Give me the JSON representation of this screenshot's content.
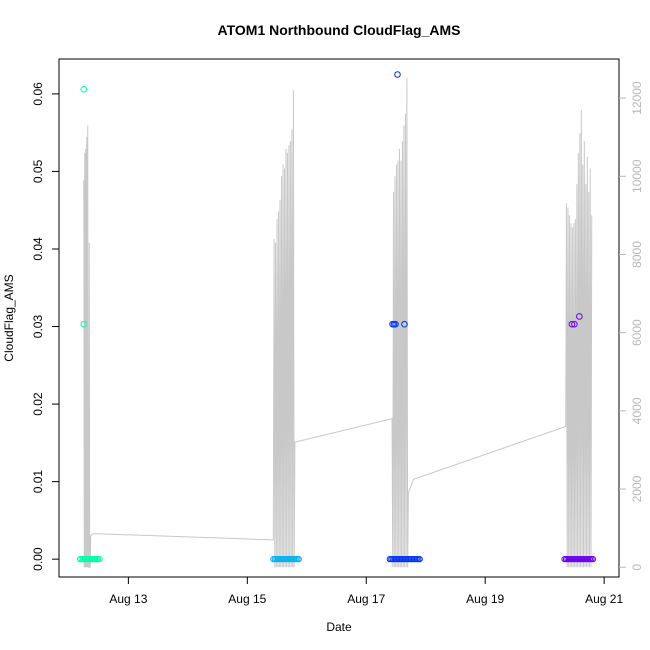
{
  "chart_data": {
    "type": "scatter",
    "title": "ATOM1 Northbound CloudFlag_AMS",
    "xlabel": "Date",
    "ylabel": "CloudFlag_AMS",
    "xlim": [
      "2023-08-11T20:00",
      "2023-08-21T06:00"
    ],
    "ylim": [
      -0.0023,
      0.0645
    ],
    "y2lim": [
      -250,
      13000
    ],
    "x_ticks": [
      {
        "value": "2023-08-13T00:00",
        "label": "Aug 13"
      },
      {
        "value": "2023-08-15T00:00",
        "label": "Aug 15"
      },
      {
        "value": "2023-08-17T00:00",
        "label": "Aug 17"
      },
      {
        "value": "2023-08-19T00:00",
        "label": "Aug 19"
      },
      {
        "value": "2023-08-21T00:00",
        "label": "Aug 21"
      }
    ],
    "y_ticks": [
      {
        "value": 0.0,
        "label": "0.00"
      },
      {
        "value": 0.01,
        "label": "0.01"
      },
      {
        "value": 0.02,
        "label": "0.02"
      },
      {
        "value": 0.03,
        "label": "0.03"
      },
      {
        "value": 0.04,
        "label": "0.04"
      },
      {
        "value": 0.05,
        "label": "0.05"
      },
      {
        "value": 0.06,
        "label": "0.06"
      }
    ],
    "y2_ticks": [
      {
        "value": 0,
        "label": "0"
      },
      {
        "value": 2000,
        "label": "2000"
      },
      {
        "value": 4000,
        "label": "4000"
      },
      {
        "value": 6000,
        "label": "6000"
      },
      {
        "value": 8000,
        "label": "8000"
      },
      {
        "value": 10000,
        "label": "10000"
      },
      {
        "value": 12000,
        "label": "12000"
      }
    ],
    "grid": false,
    "series_colors": {
      "points_1": "#00ffaa",
      "points_2": "#00b3ee",
      "points_3": "#0033ee",
      "points_4": "#6a00ee",
      "secondary_line": "#c8c8c8"
    },
    "points": [
      {
        "x": "2023-08-12T06:00",
        "y": 0.0606
      },
      {
        "x": "2023-08-12T06:00",
        "y": 0.0303
      },
      {
        "x": "2023-08-17T12:36",
        "y": 0.0625
      },
      {
        "x": "2023-08-17T10:36",
        "y": 0.0303
      },
      {
        "x": "2023-08-17T11:12",
        "y": 0.0303
      },
      {
        "x": "2023-08-17T11:48",
        "y": 0.0303
      },
      {
        "x": "2023-08-17T15:24",
        "y": 0.0303
      },
      {
        "x": "2023-08-20T11:00",
        "y": 0.0303
      },
      {
        "x": "2023-08-20T12:00",
        "y": 0.0303
      },
      {
        "x": "2023-08-20T14:00",
        "y": 0.0313
      }
    ],
    "zero_bands": [
      {
        "from": "2023-08-12T04:30",
        "to": "2023-08-12T12:30",
        "y": 0
      },
      {
        "from": "2023-08-15T10:30",
        "to": "2023-08-15T21:00",
        "y": 0
      },
      {
        "from": "2023-08-17T09:30",
        "to": "2023-08-17T22:00",
        "y": 0
      },
      {
        "from": "2023-08-20T08:00",
        "to": "2023-08-20T20:00",
        "y": 0
      }
    ],
    "secondary_series": {
      "axis": "right",
      "x": [
        "2023-08-12T06:00",
        "2023-08-12T06:12",
        "2023-08-12T06:24",
        "2023-08-12T06:36",
        "2023-08-12T06:48",
        "2023-08-12T07:00",
        "2023-08-12T07:12",
        "2023-08-12T07:24",
        "2023-08-12T07:36",
        "2023-08-12T07:48",
        "2023-08-12T08:00",
        "2023-08-12T08:12",
        "2023-08-12T08:24",
        "2023-08-12T08:36",
        "2023-08-12T08:48",
        "2023-08-12T09:00",
        "2023-08-12T09:12",
        "2023-08-12T09:24",
        "2023-08-12T09:36",
        "2023-08-12T09:48",
        "2023-08-15T10:30",
        "2023-08-15T10:48",
        "2023-08-15T11:06",
        "2023-08-15T11:24",
        "2023-08-15T11:42",
        "2023-08-15T12:00",
        "2023-08-15T12:18",
        "2023-08-15T12:36",
        "2023-08-15T12:54",
        "2023-08-15T13:12",
        "2023-08-15T13:30",
        "2023-08-15T13:48",
        "2023-08-15T14:06",
        "2023-08-15T14:24",
        "2023-08-15T14:42",
        "2023-08-15T15:00",
        "2023-08-15T15:18",
        "2023-08-15T15:36",
        "2023-08-15T15:54",
        "2023-08-15T16:12",
        "2023-08-15T16:30",
        "2023-08-15T16:48",
        "2023-08-15T17:06",
        "2023-08-15T17:24",
        "2023-08-15T17:42",
        "2023-08-15T18:00",
        "2023-08-15T18:18",
        "2023-08-15T18:36",
        "2023-08-15T18:54",
        "2023-08-15T19:12",
        "2023-08-17T10:24",
        "2023-08-17T10:42",
        "2023-08-17T11:00",
        "2023-08-17T11:18",
        "2023-08-17T11:36",
        "2023-08-17T11:54",
        "2023-08-17T12:12",
        "2023-08-17T12:30",
        "2023-08-17T12:48",
        "2023-08-17T13:06",
        "2023-08-17T13:24",
        "2023-08-17T13:42",
        "2023-08-17T14:00",
        "2023-08-17T14:18",
        "2023-08-17T14:36",
        "2023-08-17T14:54",
        "2023-08-17T15:12",
        "2023-08-17T15:30",
        "2023-08-17T15:48",
        "2023-08-17T16:06",
        "2023-08-17T16:24",
        "2023-08-17T16:42",
        "2023-08-17T17:00",
        "2023-08-17T17:18",
        "2023-08-17T17:36",
        "2023-08-17T17:54",
        "2023-08-17T18:12",
        "2023-08-17T18:30",
        "2023-08-17T18:48",
        "2023-08-17T19:06",
        "2023-08-20T08:30",
        "2023-08-20T08:48",
        "2023-08-20T09:06",
        "2023-08-20T09:24",
        "2023-08-20T09:42",
        "2023-08-20T10:00",
        "2023-08-20T10:18",
        "2023-08-20T10:36",
        "2023-08-20T10:54",
        "2023-08-20T11:12",
        "2023-08-20T11:30",
        "2023-08-20T11:48",
        "2023-08-20T12:06",
        "2023-08-20T12:24",
        "2023-08-20T12:42",
        "2023-08-20T13:00",
        "2023-08-20T13:18",
        "2023-08-20T13:36",
        "2023-08-20T13:54",
        "2023-08-20T14:12",
        "2023-08-20T14:30",
        "2023-08-20T14:48",
        "2023-08-20T15:06",
        "2023-08-20T15:24",
        "2023-08-20T15:42",
        "2023-08-20T16:00",
        "2023-08-20T16:18",
        "2023-08-20T16:36",
        "2023-08-20T16:54",
        "2023-08-20T17:12",
        "2023-08-20T17:30",
        "2023-08-20T17:48",
        "2023-08-20T18:06",
        "2023-08-20T18:24",
        "2023-08-20T18:42",
        "2023-08-20T19:00"
      ],
      "values": [
        9900,
        0,
        10600,
        0,
        10700,
        0,
        11000,
        0,
        11300,
        0,
        0,
        8300,
        0,
        0,
        800,
        820,
        830,
        840,
        850,
        860,
        700,
        8400,
        0,
        8300,
        0,
        8900,
        0,
        9100,
        0,
        9400,
        0,
        10000,
        0,
        10300,
        0,
        10200,
        0,
        10700,
        0,
        10600,
        0,
        10800,
        0,
        10900,
        0,
        11200,
        0,
        12200,
        0,
        3200,
        3800,
        0,
        9600,
        0,
        10000,
        0,
        10300,
        0,
        10400,
        0,
        10700,
        0,
        10400,
        0,
        10900,
        0,
        11300,
        0,
        11600,
        0,
        12500,
        0,
        1900,
        1950,
        2000,
        2050,
        2100,
        2150,
        2200,
        2250,
        3600,
        9300,
        0,
        9200,
        0,
        9000,
        0,
        8800,
        0,
        8700,
        0,
        8800,
        0,
        8900,
        0,
        9800,
        0,
        10600,
        0,
        11100,
        0,
        11700,
        0,
        10300,
        0,
        10900,
        0,
        9800,
        0,
        10500,
        0,
        9600,
        0,
        10200,
        0,
        9000
      ]
    }
  }
}
